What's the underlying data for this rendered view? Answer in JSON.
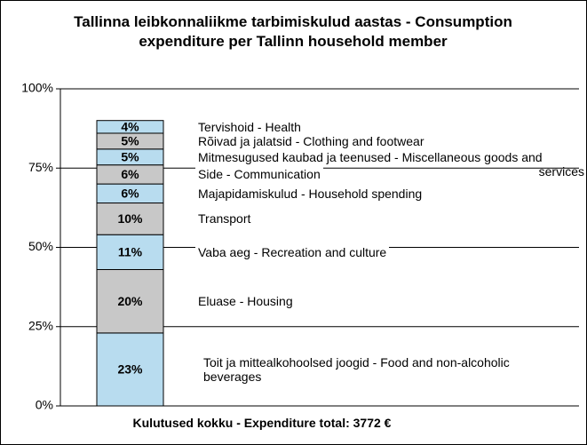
{
  "chart_data": {
    "type": "stacked_bar",
    "title": "Tallinna leibkonnaliikme tarbimiskulud aastas - Consumption expenditure per Tallinn household member",
    "xlabel": "Kulutused kokku - Expenditure total:  3772 €",
    "ylim": [
      0,
      100
    ],
    "yticks": [
      {
        "value": 0,
        "label": "0%"
      },
      {
        "value": 25,
        "label": "25%"
      },
      {
        "value": 50,
        "label": "50%"
      },
      {
        "value": 75,
        "label": "75%"
      },
      {
        "value": 100,
        "label": "100%"
      }
    ],
    "grid": true,
    "series": [
      {
        "name": "Toit ja mittealkohoolsed joogid - Food and non-alcoholic beverages",
        "color": "#b8dcef",
        "values": [
          23
        ],
        "value_labels": [
          "23%"
        ]
      },
      {
        "name": "Eluase - Housing",
        "color": "#c8c8c8",
        "values": [
          20
        ],
        "value_labels": [
          "20%"
        ]
      },
      {
        "name": "Vaba aeg - Recreation and culture",
        "color": "#b8dcef",
        "values": [
          11
        ],
        "value_labels": [
          "11%"
        ]
      },
      {
        "name": "Transport",
        "color": "#c8c8c8",
        "values": [
          10
        ],
        "value_labels": [
          "10%"
        ]
      },
      {
        "name": "Majapidamiskulud - Household spending",
        "color": "#b8dcef",
        "values": [
          6
        ],
        "value_labels": [
          "6%"
        ]
      },
      {
        "name": "Side - Communication",
        "color": "#c8c8c8",
        "values": [
          6
        ],
        "value_labels": [
          "6%"
        ]
      },
      {
        "name": "Mitmesugused kaubad ja teenused - Miscellaneous goods and services",
        "color": "#b8dcef",
        "values": [
          5
        ],
        "value_labels": [
          "5%"
        ]
      },
      {
        "name": "Rõivad ja jalatsid - Clothing and footwear",
        "color": "#c8c8c8",
        "values": [
          5
        ],
        "value_labels": [
          "5%"
        ]
      },
      {
        "name": "Tervishoid - Health",
        "color": "#b8dcef",
        "values": [
          4
        ],
        "value_labels": [
          "4%"
        ]
      }
    ]
  }
}
